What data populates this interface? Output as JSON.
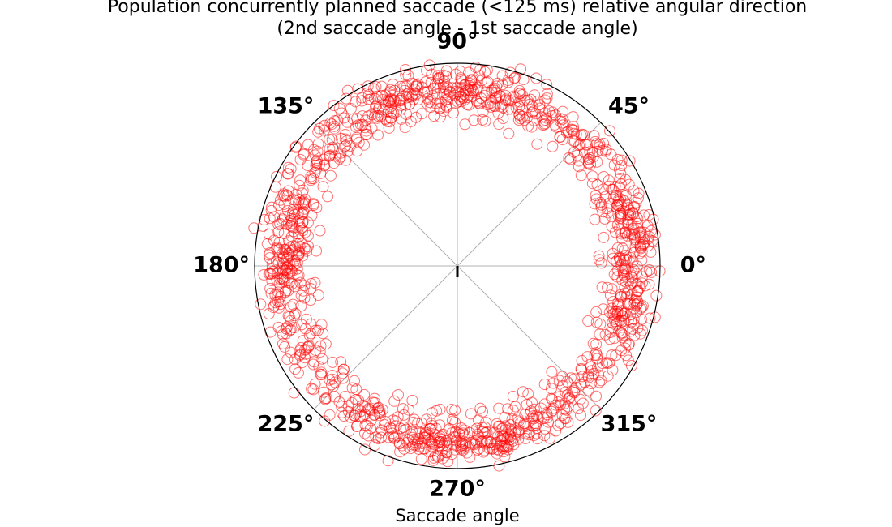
{
  "chart_data": {
    "type": "scatter",
    "projection": "polar",
    "title": "Population concurrently planned saccade (<125 ms) relative angular direction",
    "subtitle": "(2nd saccade angle - 1st saccade angle)",
    "xlabel": "Saccade angle",
    "angle_tick_labels": [
      "0°",
      "45°",
      "90°",
      "135°",
      "180°",
      "225°",
      "270°",
      "315°"
    ],
    "angle_ticks_deg": [
      0,
      45,
      90,
      135,
      180,
      225,
      270,
      315
    ],
    "radial_range": [
      0,
      1.0
    ],
    "radial_distribution": {
      "min": 0.72,
      "max": 0.98,
      "center": 0.86
    },
    "grid": true,
    "marker": "open-circle",
    "marker_color": "#ff0000",
    "marker_alpha": 0.55,
    "series": [
      {
        "n_points": 1400,
        "angular_density_peaks_deg": [
          0,
          90,
          180,
          270
        ],
        "angular_density_notes": "points spread all around circle, denser near cardinal directions"
      }
    ]
  }
}
